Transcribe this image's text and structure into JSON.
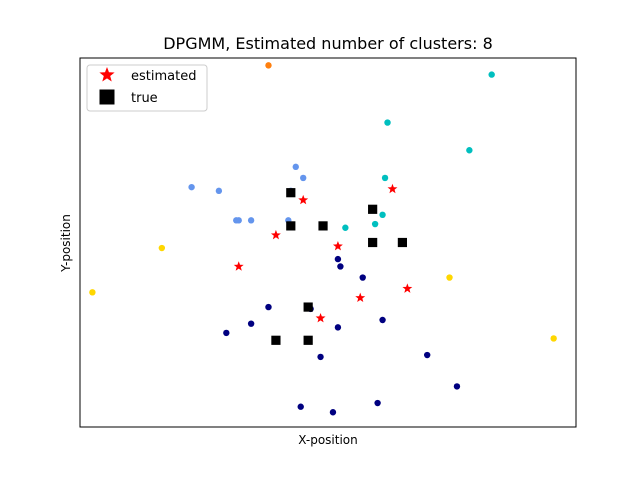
{
  "chart_data": {
    "type": "scatter",
    "title": "DPGMM, Estimated number of clusters: 8",
    "xlabel": "X-position",
    "ylabel": "Y-position",
    "xlim": [
      -10,
      10
    ],
    "ylim": [
      -10,
      10
    ],
    "ticks_visible": false,
    "grid": false,
    "legend": {
      "position": "top-left",
      "entries": [
        {
          "label": "estimated",
          "marker": "star",
          "color": "#ff0000"
        },
        {
          "label": "true",
          "marker": "square",
          "color": "#000000"
        }
      ]
    },
    "series": [
      {
        "marker": "circle",
        "color": "#000080",
        "points": [
          [
            0.4,
            -0.9
          ],
          [
            0.5,
            -1.3
          ],
          [
            1.4,
            -1.9
          ],
          [
            -2.4,
            -3.5
          ],
          [
            -0.7,
            -3.6
          ],
          [
            2.2,
            -4.2
          ],
          [
            0.4,
            -4.6
          ],
          [
            -4.1,
            -4.9
          ],
          [
            -3.1,
            -4.4
          ],
          [
            -0.3,
            -6.2
          ],
          [
            4.0,
            -6.1
          ],
          [
            5.2,
            -7.8
          ],
          [
            -1.1,
            -8.9
          ],
          [
            0.2,
            -9.2
          ],
          [
            2.0,
            -8.7
          ]
        ]
      },
      {
        "marker": "circle",
        "color": "#6495ed",
        "points": [
          [
            -1.3,
            4.1
          ],
          [
            -1.0,
            3.5
          ],
          [
            -5.5,
            3.0
          ],
          [
            -4.4,
            2.8
          ],
          [
            -1.5,
            2.8
          ],
          [
            -3.6,
            1.2
          ],
          [
            -3.7,
            1.2
          ],
          [
            -3.1,
            1.2
          ],
          [
            -1.6,
            1.2
          ]
        ]
      },
      {
        "marker": "circle",
        "color": "#00bfbf",
        "points": [
          [
            2.4,
            6.5
          ],
          [
            6.6,
            9.1
          ],
          [
            5.7,
            5.0
          ],
          [
            2.3,
            3.5
          ],
          [
            2.2,
            1.5
          ],
          [
            1.9,
            1.0
          ],
          [
            0.7,
            0.8
          ]
        ]
      },
      {
        "marker": "circle",
        "color": "#ffd700",
        "points": [
          [
            -6.7,
            -0.3
          ],
          [
            -9.5,
            -2.7
          ],
          [
            4.9,
            -1.9
          ],
          [
            9.1,
            -5.2
          ]
        ]
      },
      {
        "marker": "circle",
        "color": "#ff7f0e",
        "points": [
          [
            -2.4,
            9.6
          ]
        ]
      },
      {
        "marker": "star",
        "color": "#ff0000",
        "points": [
          [
            2.6,
            2.9
          ],
          [
            -1.0,
            2.3
          ],
          [
            -2.1,
            0.4
          ],
          [
            0.4,
            -0.2
          ],
          [
            -3.6,
            -1.3
          ],
          [
            1.3,
            -3.0
          ],
          [
            3.2,
            -2.5
          ],
          [
            -0.3,
            -4.1
          ]
        ]
      },
      {
        "marker": "square",
        "color": "#000000",
        "points": [
          [
            -1.5,
            2.7
          ],
          [
            1.8,
            1.8
          ],
          [
            -1.5,
            0.9
          ],
          [
            -0.2,
            0.9
          ],
          [
            1.8,
            0.0
          ],
          [
            3.0,
            0.0
          ],
          [
            -0.8,
            -3.5
          ],
          [
            -2.1,
            -5.3
          ],
          [
            -0.8,
            -5.3
          ]
        ]
      }
    ]
  }
}
